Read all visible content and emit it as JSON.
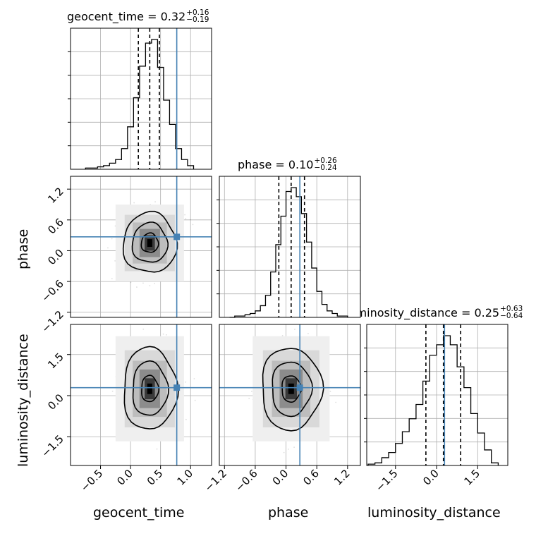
{
  "chart_data": {
    "type": "corner",
    "parameters": [
      "geocent_time",
      "phase",
      "luminosity_distance"
    ],
    "truths": [
      0.77,
      0.27,
      0.29
    ],
    "truth_color": "#4682b4",
    "titles": [
      {
        "name": "geocent_time",
        "median": "0.32",
        "plus": "+0.16",
        "minus": "−0.19"
      },
      {
        "name": "phase",
        "median": "0.10",
        "plus": "+0.26",
        "minus": "−0.24"
      },
      {
        "name": "luminosity_distance",
        "median": "0.25",
        "plus": "+0.63",
        "minus": "−0.64"
      }
    ],
    "axis_ranges": {
      "geocent_time": [
        -1.0,
        1.35
      ],
      "phase": [
        -1.3,
        1.45
      ],
      "luminosity_distance": [
        -2.55,
        2.6
      ]
    },
    "ticks": {
      "geocent_time": [
        "−0.5",
        "0.0",
        "0.5",
        "1.0"
      ],
      "phase": [
        "−1.2",
        "−0.6",
        "0.0",
        "0.6",
        "1.2"
      ],
      "luminosity_distance": [
        "−1.5",
        "0.0",
        "1.5"
      ]
    },
    "quantile_lines": {
      "geocent_time": [
        0.13,
        0.32,
        0.48
      ],
      "phase": [
        -0.14,
        0.1,
        0.36
      ],
      "luminosity_distance": [
        -0.39,
        0.25,
        0.88
      ]
    },
    "histograms": {
      "geocent_time": {
        "edges": [
          -0.75,
          -0.65,
          -0.55,
          -0.45,
          -0.35,
          -0.25,
          -0.15,
          -0.05,
          0.05,
          0.15,
          0.25,
          0.35,
          0.45,
          0.55,
          0.65,
          0.75,
          0.85,
          0.95,
          1.05
        ],
        "counts": [
          1,
          1,
          2,
          3,
          5,
          8,
          17,
          35,
          59,
          85,
          104,
          107,
          84,
          57,
          37,
          17,
          8,
          3
        ]
      },
      "phase": {
        "edges": [
          -1.1,
          -1.0,
          -0.9,
          -0.8,
          -0.7,
          -0.6,
          -0.5,
          -0.4,
          -0.3,
          -0.2,
          -0.1,
          0.0,
          0.1,
          0.2,
          0.3,
          0.4,
          0.5,
          0.6,
          0.7,
          0.8,
          0.9,
          1.0,
          1.1,
          1.2
        ],
        "counts": [
          0,
          1,
          1,
          2,
          3,
          5,
          9,
          17,
          35,
          56,
          78,
          97,
          100,
          93,
          80,
          58,
          38,
          20,
          10,
          5,
          3,
          1,
          1
        ]
      },
      "luminosity_distance": {
        "edges": [
          -2.5,
          -2.25,
          -2.0,
          -1.75,
          -1.5,
          -1.25,
          -1.0,
          -0.75,
          -0.5,
          -0.25,
          0.0,
          0.25,
          0.5,
          0.75,
          1.0,
          1.25,
          1.5,
          1.75,
          2.0,
          2.25
        ],
        "counts": [
          1,
          2,
          6,
          10,
          17,
          26,
          36,
          47,
          65,
          85,
          93,
          100,
          93,
          76,
          60,
          40,
          25,
          12,
          2
        ]
      }
    },
    "joint_centers": {
      "phase_vs_geocent_time": [
        0.32,
        0.15
      ],
      "luminosity_distance_vs_geocent_time": [
        0.32,
        0.25
      ],
      "luminosity_distance_vs_phase": [
        0.1,
        0.25
      ]
    },
    "contour_levels": 3,
    "grid": true
  }
}
